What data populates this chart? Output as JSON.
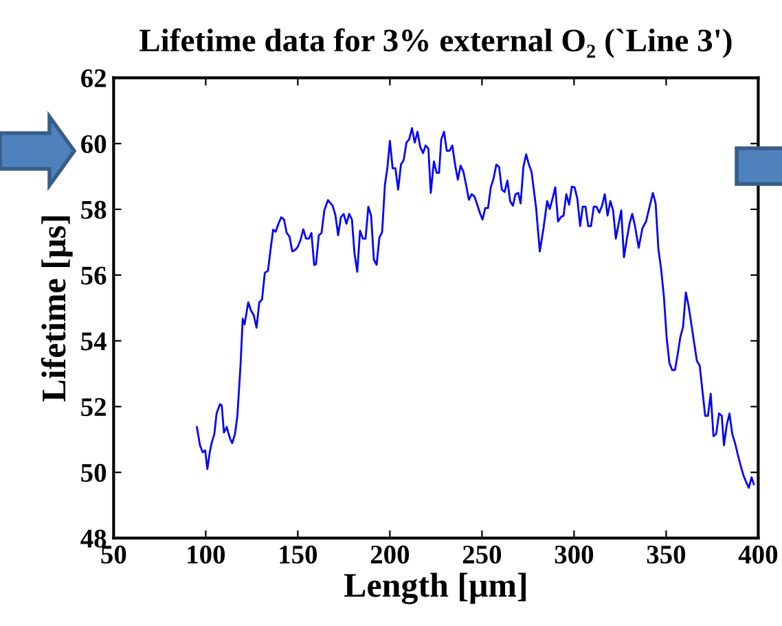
{
  "chart_data": {
    "type": "line",
    "title": "Lifetime data for 3% external O₂ (`Line 3')",
    "xlabel": "Length [μm]",
    "ylabel": "Lifetime [μs]",
    "xlim": [
      50,
      400
    ],
    "xticks": [
      50,
      100,
      150,
      200,
      250,
      300,
      350,
      400
    ],
    "ylim": [
      48,
      62
    ],
    "yticks": [
      48,
      50,
      52,
      54,
      56,
      58,
      60,
      62
    ],
    "grid": false,
    "marker": "none",
    "line_style": "solid",
    "series": [
      {
        "color": "#0000ff",
        "x": [
          95.2,
          96.9,
          98.4,
          99.7,
          100.9,
          102.2,
          103.2,
          104.7,
          105.9,
          107.7,
          108.7,
          109.9,
          111.4,
          113.2,
          114.4,
          115.9,
          117.2,
          118.9,
          120.1,
          121.1,
          123.1,
          124.6,
          126.1,
          127.6,
          129.1,
          130.6,
          132.1,
          133.8,
          135.1,
          136.6,
          138.0,
          139.5,
          141.0,
          142.5,
          144.0,
          145.5,
          147.0,
          148.5,
          150.0,
          151.5,
          153.0,
          154.5,
          156.0,
          157.4,
          158.9,
          159.9,
          161.4,
          162.9,
          164.4,
          166.4,
          168.9,
          170.4,
          171.9,
          173.4,
          174.9,
          176.4,
          177.9,
          179.4,
          180.8,
          182.3,
          183.8,
          185.3,
          186.8,
          188.3,
          189.8,
          191.3,
          192.8,
          194.3,
          195.8,
          197.3,
          198.7,
          200.0,
          201.5,
          203.0,
          204.5,
          206.0,
          207.5,
          209.0,
          210.5,
          212.0,
          213.5,
          215.0,
          216.5,
          218.0,
          219.4,
          220.9,
          222.2,
          223.9,
          225.4,
          226.7,
          227.9,
          229.4,
          230.9,
          232.4,
          233.9,
          235.4,
          236.9,
          238.4,
          239.9,
          241.4,
          242.9,
          244.4,
          245.9,
          247.4,
          248.8,
          250.3,
          251.8,
          253.3,
          254.8,
          256.3,
          257.8,
          259.3,
          260.8,
          262.3,
          263.8,
          265.3,
          266.8,
          268.2,
          269.7,
          271.0,
          272.5,
          274.0,
          275.5,
          276.9,
          279.4,
          281.4,
          283.4,
          285.4,
          286.8,
          288.3,
          289.8,
          291.3,
          292.8,
          294.3,
          295.8,
          297.3,
          298.8,
          300.3,
          301.8,
          303.3,
          304.7,
          306.2,
          307.7,
          309.2,
          310.7,
          312.2,
          313.7,
          315.2,
          316.7,
          318.2,
          319.7,
          321.2,
          322.7,
          324.2,
          325.6,
          327.1,
          328.6,
          330.1,
          331.6,
          333.1,
          335.1,
          337.1,
          339.1,
          341.1,
          342.8,
          344.3,
          345.8,
          347.3,
          348.8,
          350.3,
          351.8,
          353.3,
          354.8,
          356.3,
          357.7,
          359.2,
          360.7,
          362.2,
          363.7,
          365.2,
          366.7,
          368.2,
          369.7,
          371.2,
          372.7,
          374.2,
          375.7,
          377.2,
          378.7,
          380.2,
          381.4,
          382.9,
          384.4,
          385.9,
          387.4,
          388.9,
          390.4,
          391.9,
          393.4,
          394.9,
          396.4,
          397.6
        ],
        "values": [
          51.38,
          50.82,
          50.61,
          50.67,
          50.1,
          50.61,
          50.89,
          51.17,
          51.79,
          52.07,
          52.04,
          51.21,
          51.38,
          51.03,
          50.89,
          51.17,
          51.72,
          53.25,
          54.67,
          54.5,
          55.17,
          54.92,
          54.78,
          54.4,
          55.17,
          55.26,
          56.07,
          56.13,
          56.72,
          57.38,
          57.32,
          57.56,
          57.76,
          57.69,
          57.28,
          57.17,
          56.72,
          56.76,
          56.86,
          57.07,
          57.39,
          57.11,
          57.11,
          57.28,
          56.31,
          56.33,
          57.21,
          57.28,
          57.97,
          58.28,
          58.11,
          57.83,
          57.21,
          57.76,
          57.86,
          57.56,
          57.86,
          57.69,
          56.65,
          56.1,
          57.35,
          57.11,
          57.11,
          58.08,
          57.81,
          56.47,
          56.31,
          57.14,
          57.31,
          58.74,
          59.29,
          60.08,
          59.25,
          59.25,
          58.6,
          59.36,
          59.5,
          60.03,
          60.13,
          60.47,
          60.03,
          60.36,
          59.89,
          59.71,
          59.94,
          59.85,
          58.5,
          59.46,
          59.11,
          59.11,
          60.13,
          60.36,
          59.78,
          59.78,
          59.94,
          59.36,
          58.9,
          59.33,
          59.15,
          58.74,
          58.29,
          58.46,
          58.39,
          58.15,
          57.9,
          57.69,
          58.04,
          58.04,
          58.67,
          58.94,
          59.36,
          59.29,
          58.6,
          58.53,
          58.88,
          58.25,
          58.11,
          58.46,
          58.5,
          58.18,
          59.29,
          59.67,
          59.36,
          59.15,
          58.04,
          56.72,
          57.42,
          58.25,
          58.01,
          58.32,
          58.67,
          57.63,
          57.76,
          57.81,
          58.46,
          58.14,
          58.69,
          58.67,
          58.32,
          57.49,
          58.08,
          58.08,
          57.49,
          57.49,
          58.08,
          58.08,
          57.9,
          58.11,
          58.46,
          57.81,
          58.25,
          57.97,
          57.11,
          57.56,
          57.97,
          56.54,
          57.07,
          57.56,
          57.86,
          57.49,
          56.83,
          57.42,
          57.63,
          58.11,
          58.5,
          58.18,
          56.79,
          56.17,
          55.33,
          54.08,
          53.32,
          53.11,
          53.11,
          53.6,
          54.11,
          54.43,
          55.47,
          55.06,
          54.5,
          53.94,
          53.39,
          53.25,
          52.49,
          51.72,
          51.72,
          52.39,
          51.1,
          51.17,
          51.79,
          51.72,
          50.82,
          51.44,
          51.79,
          51.17,
          50.89,
          50.54,
          50.22,
          49.92,
          49.71,
          49.53,
          49.85,
          49.64
        ]
      }
    ]
  }
}
